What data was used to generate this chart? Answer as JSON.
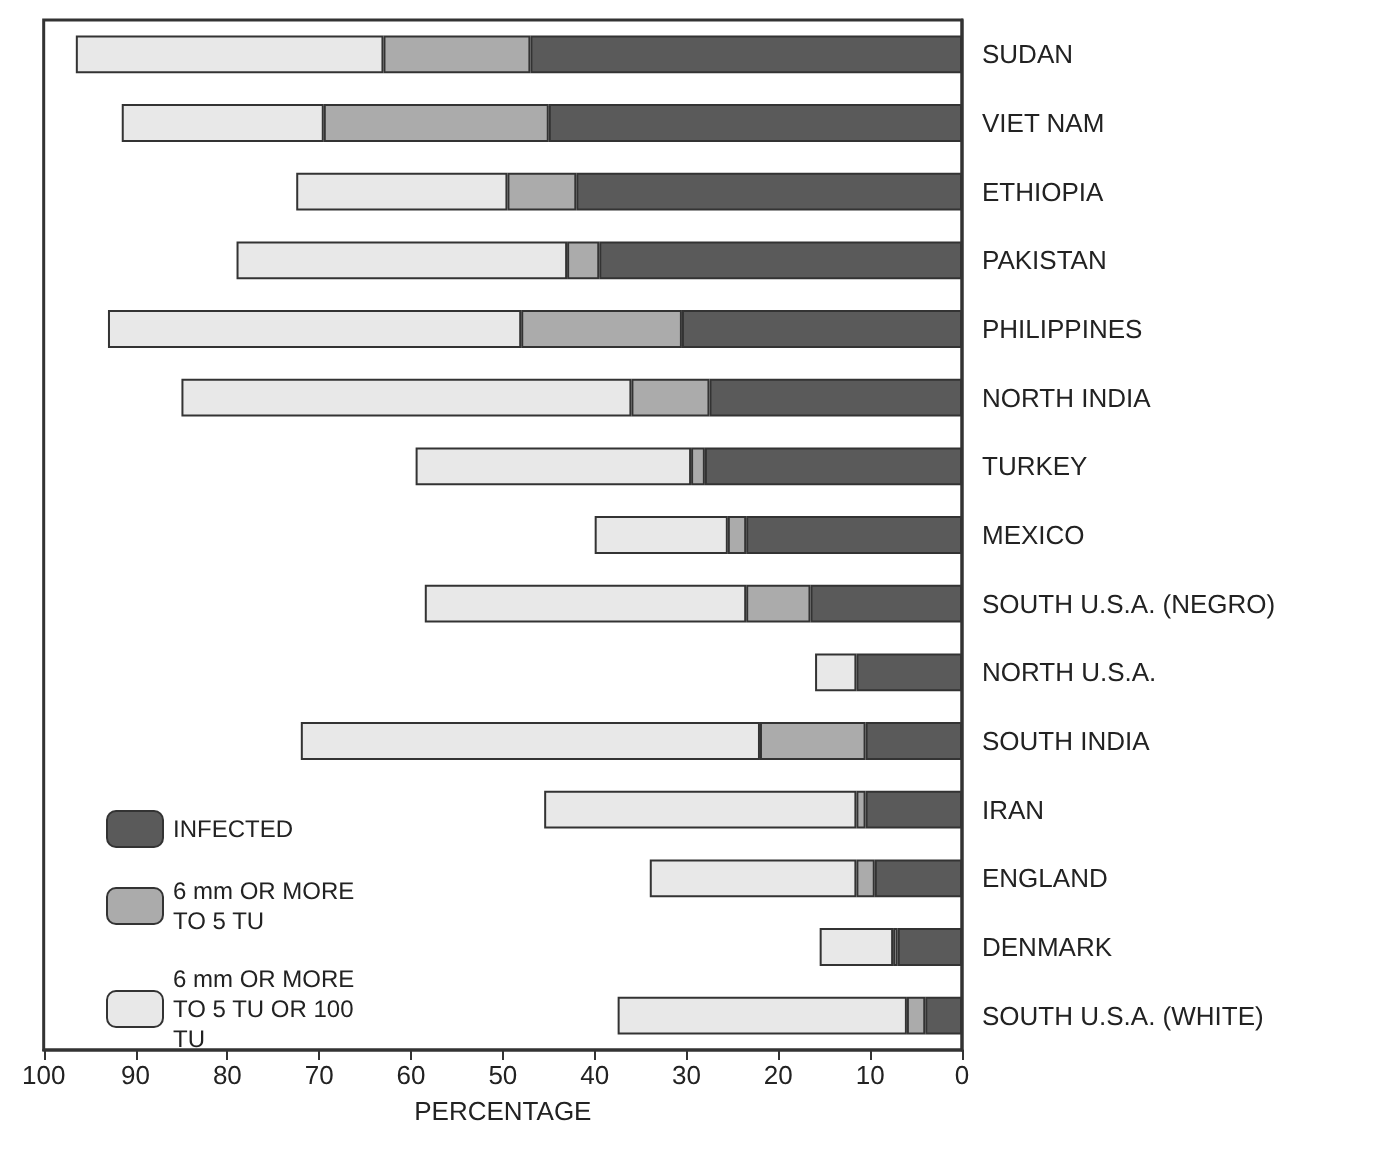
{
  "chart_data": {
    "type": "bar",
    "orientation": "horizontal",
    "stacked": true,
    "xlabel": "PERCENTAGE",
    "categories": [
      "SUDAN",
      "VIET NAM",
      "ETHIOPIA",
      "PAKISTAN",
      "PHILIPPINES",
      "NORTH INDIA",
      "TURKEY",
      "MEXICO",
      "SOUTH U.S.A. (NEGRO)",
      "NORTH U.S.A.",
      "SOUTH INDIA",
      "IRAN",
      "ENGLAND",
      "DENMARK",
      "SOUTH U.S.A. (WHITE)"
    ],
    "series": [
      {
        "name": "INFECTED",
        "color": "#5a5a5a",
        "values": [
          47,
          45,
          42,
          39.5,
          30.5,
          27.5,
          28,
          23.5,
          16.5,
          11.5,
          10.5,
          10.5,
          9.5,
          7,
          4
        ]
      },
      {
        "name": "6 mm OR MORE TO 5 TU",
        "color": "#ababab",
        "values": [
          16,
          24.5,
          7.5,
          3.5,
          17.5,
          8.5,
          1.5,
          2,
          7,
          null,
          11.5,
          1,
          2,
          0.5,
          2
        ]
      },
      {
        "name": "6 mm OR MORE TO 5 TU OR 100 TU",
        "color": "#e8e8e8",
        "values": [
          33.5,
          22,
          23,
          36,
          45,
          49,
          30,
          14.5,
          35,
          4.5,
          50,
          34,
          22.5,
          8,
          31.5
        ]
      }
    ],
    "xlim": [
      100,
      0
    ],
    "xticks": [
      100,
      90,
      80,
      70,
      60,
      50,
      40,
      30,
      20,
      10,
      0
    ],
    "legend": "bottom left",
    "grid": false
  }
}
